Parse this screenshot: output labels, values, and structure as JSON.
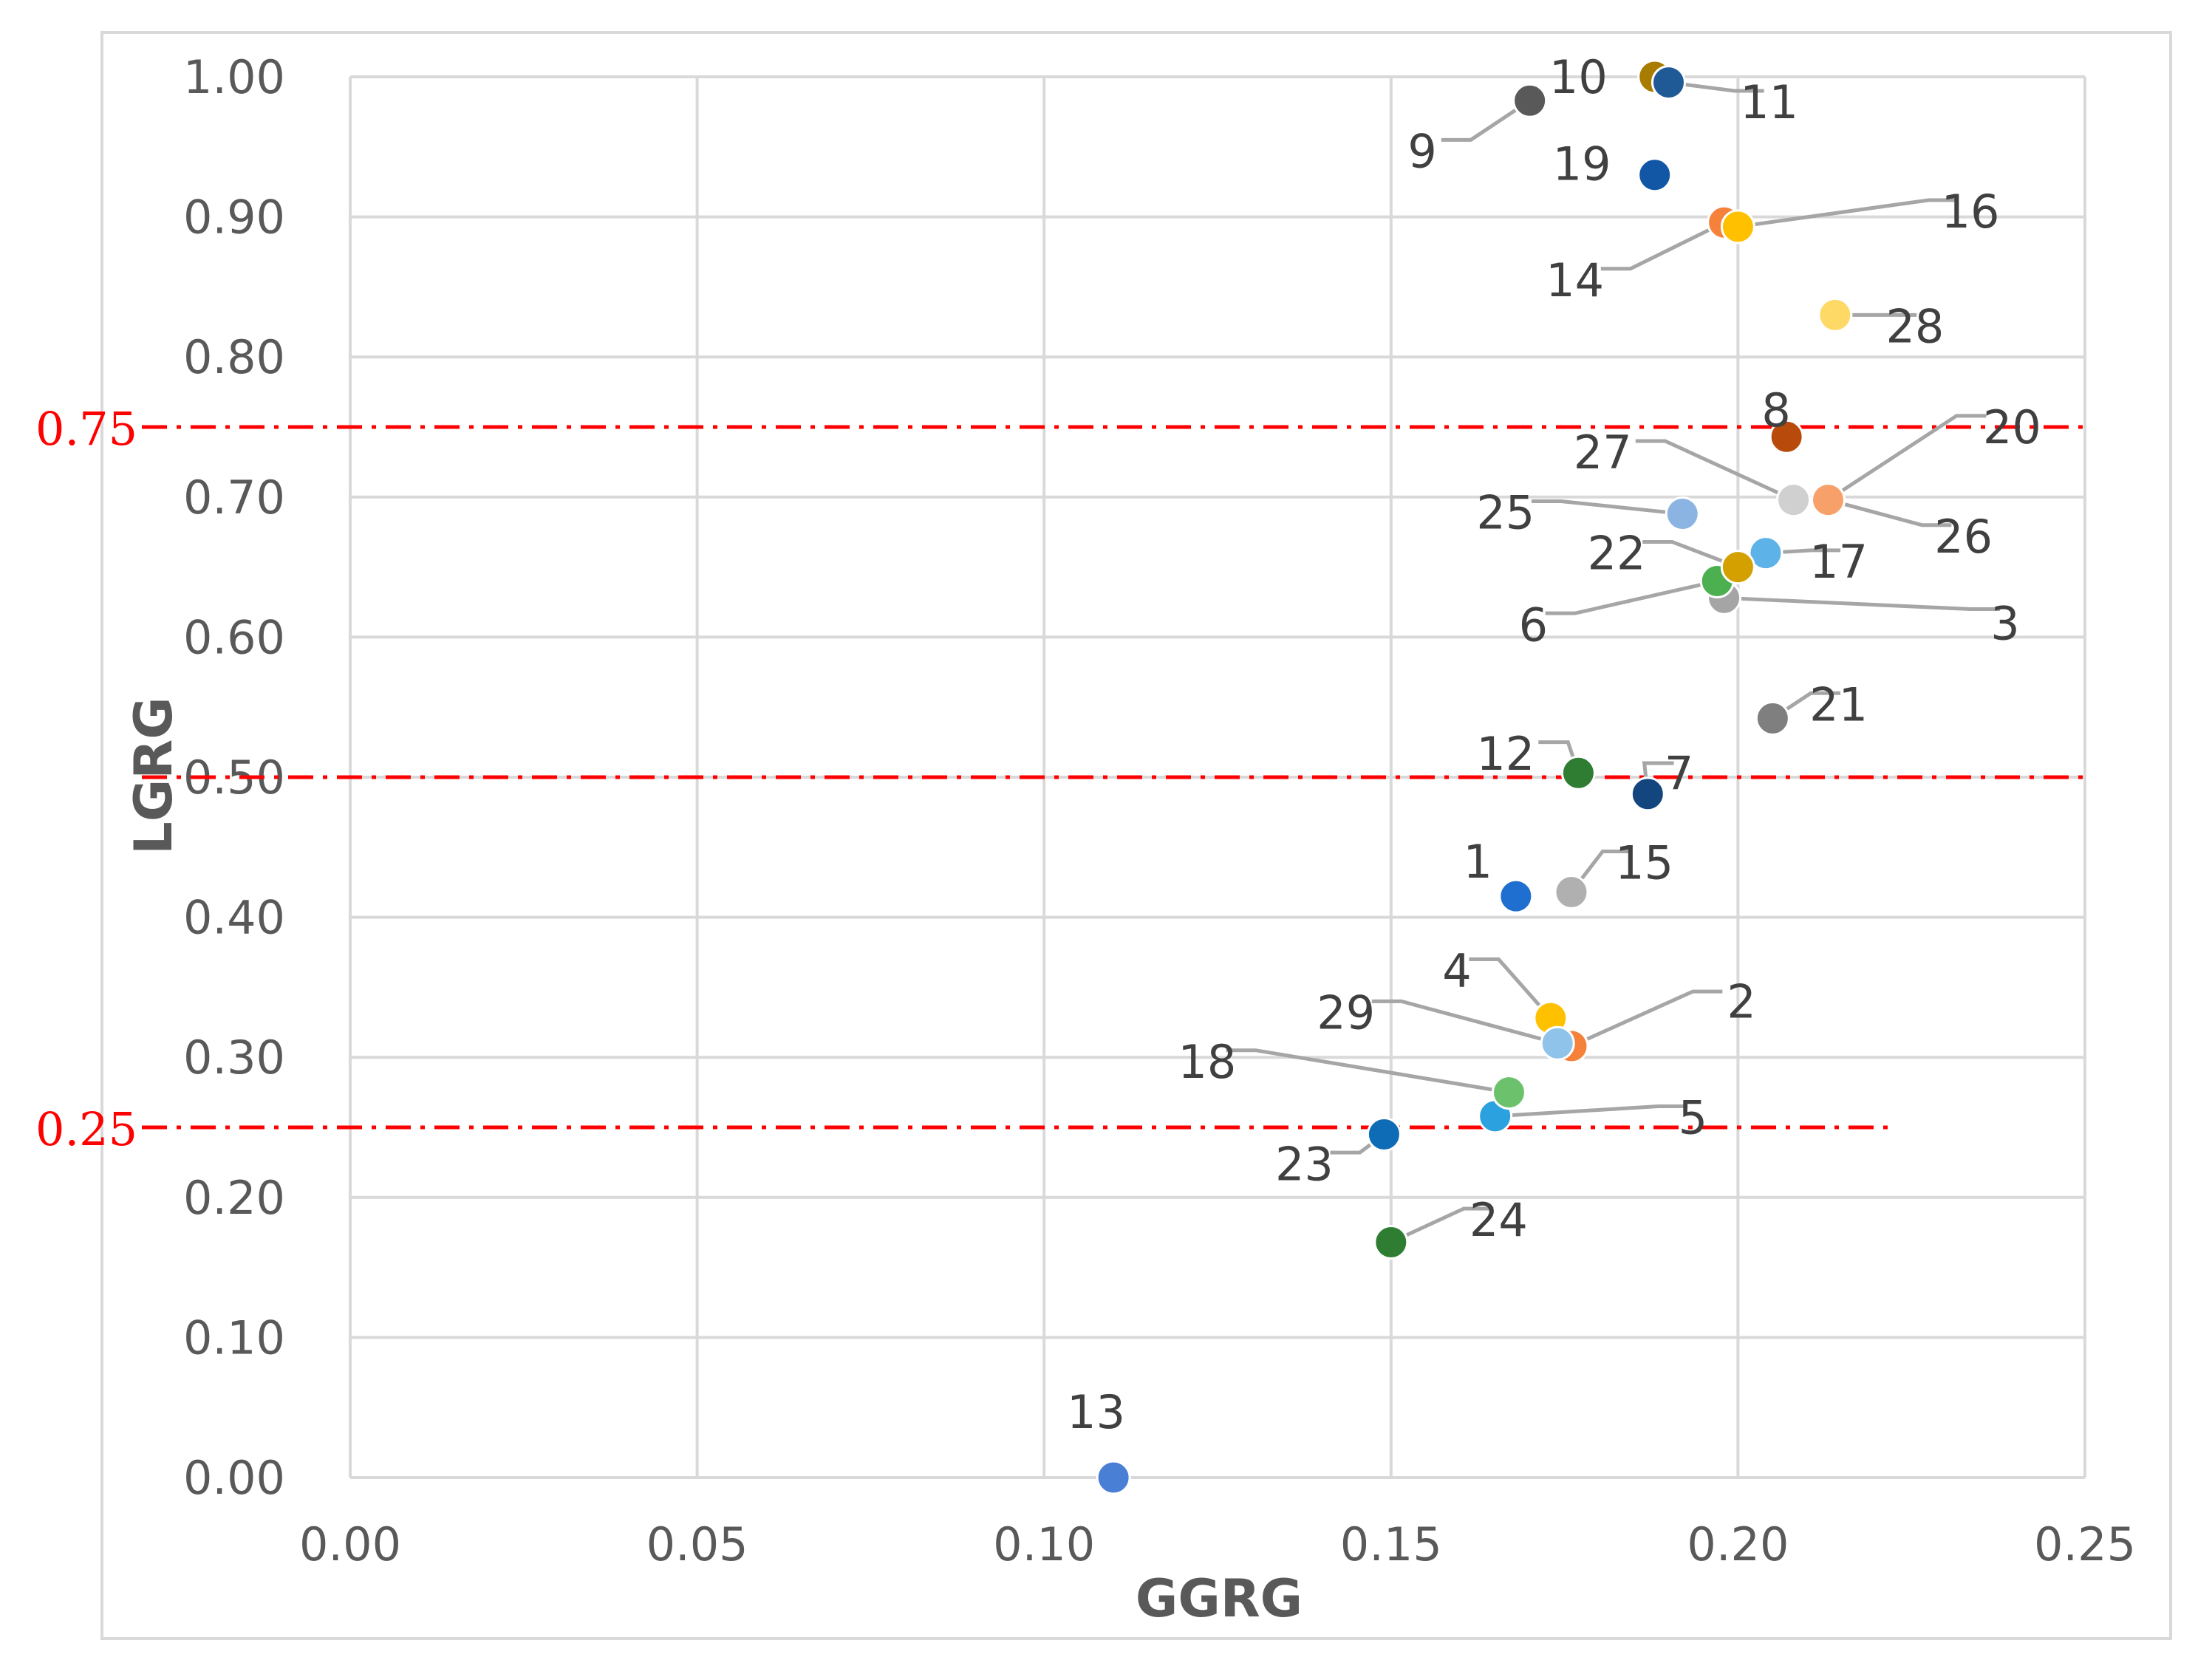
{
  "chart_data": {
    "type": "scatter",
    "title": "",
    "xlabel": "GGRG",
    "ylabel": "LGRG",
    "xlim": [
      0,
      0.25
    ],
    "ylim": [
      0,
      1.0
    ],
    "x_ticks": [
      "0.00",
      "0.05",
      "0.10",
      "0.15",
      "0.20",
      "0.25"
    ],
    "y_ticks": [
      "0.00",
      "0.10",
      "0.20",
      "0.30",
      "0.40",
      "0.50",
      "0.60",
      "0.70",
      "0.80",
      "0.90",
      "1.00"
    ],
    "grid": true,
    "thresholds": [
      {
        "label": "0.75",
        "value": 0.75,
        "x_end": 0.25,
        "color": "#ff0000"
      },
      {
        "label": "0.50",
        "value": 0.5,
        "x_end": 0.25,
        "color": "#ff0000"
      },
      {
        "label": "0.25",
        "value": 0.25,
        "x_end": 0.222,
        "color": "#ff0000"
      }
    ],
    "points": [
      {
        "label": "1",
        "x": 0.168,
        "y": 0.415,
        "color": "#1f6fd0",
        "anchor": [
          0.165,
          0.426
        ],
        "elbow": null,
        "text_at": [
          0.1625,
          0.44
        ]
      },
      {
        "label": "2",
        "x": 0.176,
        "y": 0.308,
        "color": "#f5813a",
        "anchor": [
          0.176,
          0.308
        ],
        "elbow": [
          0.1935,
          0.347
        ],
        "text_at": [
          0.2005,
          0.34
        ]
      },
      {
        "label": "3",
        "x": 0.198,
        "y": 0.628,
        "color": "#a5a5a5",
        "anchor": [
          0.198,
          0.628
        ],
        "elbow": [
          0.2335,
          0.62
        ],
        "text_at": [
          0.2385,
          0.61
        ]
      },
      {
        "label": "4",
        "x": 0.173,
        "y": 0.328,
        "color": "#ffc000",
        "anchor": [
          0.173,
          0.328
        ],
        "elbow": [
          0.1655,
          0.37
        ],
        "text_at": [
          0.1595,
          0.362
        ]
      },
      {
        "label": "5",
        "x": 0.165,
        "y": 0.258,
        "color": "#2ba1e0",
        "anchor": [
          0.165,
          0.258
        ],
        "elbow": [
          0.1885,
          0.265
        ],
        "text_at": [
          0.1935,
          0.257
        ]
      },
      {
        "label": "6",
        "x": 0.197,
        "y": 0.64,
        "color": "#4caf50",
        "anchor": [
          0.197,
          0.64
        ],
        "elbow": [
          0.1765,
          0.617
        ],
        "text_at": [
          0.1705,
          0.609
        ]
      },
      {
        "label": "7",
        "x": 0.187,
        "y": 0.488,
        "color": "#13467f",
        "anchor": [
          0.187,
          0.488
        ],
        "elbow": [
          0.1865,
          0.51
        ],
        "text_at": [
          0.1915,
          0.503
        ]
      },
      {
        "label": "8",
        "x": 0.207,
        "y": 0.743,
        "color": "#b84a0c",
        "anchor": null,
        "elbow": null,
        "text_at": [
          0.2055,
          0.762
        ]
      },
      {
        "label": "9",
        "x": 0.17,
        "y": 0.983,
        "color": "#595959",
        "anchor": [
          0.17,
          0.983
        ],
        "elbow": [
          0.1615,
          0.955
        ],
        "text_at": [
          0.1545,
          0.947
        ]
      },
      {
        "label": "10",
        "x": 0.188,
        "y": 1.0,
        "color": "#a87c00",
        "anchor": null,
        "elbow": null,
        "text_at": [
          0.177,
          1.0
        ]
      },
      {
        "label": "11",
        "x": 0.19,
        "y": 0.996,
        "color": "#1f5a97",
        "anchor": [
          0.19,
          0.996
        ],
        "elbow": [
          0.1995,
          0.99
        ],
        "text_at": [
          0.2045,
          0.982
        ]
      },
      {
        "label": "12",
        "x": 0.177,
        "y": 0.503,
        "color": "#2e7d32",
        "anchor": [
          0.177,
          0.503
        ],
        "elbow": [
          0.1755,
          0.525
        ],
        "text_at": [
          0.1665,
          0.517
        ]
      },
      {
        "label": "13",
        "x": 0.11,
        "y": 0.0,
        "color": "#4a7fd6",
        "anchor": null,
        "elbow": null,
        "text_at": [
          0.1075,
          0.047
        ]
      },
      {
        "label": "14",
        "x": 0.198,
        "y": 0.896,
        "color": "#f5813a",
        "anchor": [
          0.198,
          0.896
        ],
        "elbow": [
          0.1845,
          0.863
        ],
        "text_at": [
          0.1765,
          0.855
        ]
      },
      {
        "label": "15",
        "x": 0.176,
        "y": 0.418,
        "color": "#b0b0b0",
        "anchor": [
          0.176,
          0.418
        ],
        "elbow": [
          0.1805,
          0.447
        ],
        "text_at": [
          0.1865,
          0.439
        ]
      },
      {
        "label": "16",
        "x": 0.2,
        "y": 0.893,
        "color": "#ffc000",
        "anchor": [
          0.2,
          0.893
        ],
        "elbow": [
          0.2275,
          0.912
        ],
        "text_at": [
          0.2335,
          0.904
        ]
      },
      {
        "label": "17",
        "x": 0.204,
        "y": 0.66,
        "color": "#5db3e8",
        "anchor": [
          0.204,
          0.66
        ],
        "elbow": [
          0.2105,
          0.662
        ],
        "text_at": [
          0.2145,
          0.654
        ]
      },
      {
        "label": "18",
        "x": 0.167,
        "y": 0.275,
        "color": "#6cc26c",
        "anchor": [
          0.167,
          0.275
        ],
        "elbow": [
          0.1305,
          0.305
        ],
        "text_at": [
          0.1235,
          0.297
        ]
      },
      {
        "label": "19",
        "x": 0.188,
        "y": 0.93,
        "color": "#1256a6",
        "anchor": null,
        "elbow": null,
        "text_at": [
          0.1775,
          0.938
        ]
      },
      {
        "label": "20",
        "x": 0.213,
        "y": 0.698,
        "color": "#f5813a",
        "anchor": [
          0.213,
          0.698
        ],
        "elbow": [
          0.2315,
          0.758
        ],
        "text_at": [
          0.2395,
          0.75
        ]
      },
      {
        "label": "21",
        "x": 0.205,
        "y": 0.542,
        "color": "#7f7f7f",
        "anchor": [
          0.205,
          0.542
        ],
        "elbow": [
          0.2105,
          0.56
        ],
        "text_at": [
          0.2145,
          0.552
        ]
      },
      {
        "label": "22",
        "x": 0.2,
        "y": 0.65,
        "color": "#d4a000",
        "anchor": [
          0.2,
          0.65
        ],
        "elbow": [
          0.1905,
          0.668
        ],
        "text_at": [
          0.1825,
          0.66
        ]
      },
      {
        "label": "23",
        "x": 0.149,
        "y": 0.245,
        "color": "#0e6cb6",
        "anchor": [
          0.149,
          0.245
        ],
        "elbow": [
          0.1455,
          0.232
        ],
        "text_at": [
          0.1375,
          0.224
        ]
      },
      {
        "label": "24",
        "x": 0.15,
        "y": 0.168,
        "color": "#2e7d32",
        "anchor": [
          0.15,
          0.168
        ],
        "elbow": [
          0.1605,
          0.192
        ],
        "text_at": [
          0.1655,
          0.184
        ]
      },
      {
        "label": "25",
        "x": 0.192,
        "y": 0.688,
        "color": "#8cb4e2",
        "anchor": [
          0.192,
          0.688
        ],
        "elbow": [
          0.1745,
          0.697
        ],
        "text_at": [
          0.1665,
          0.689
        ]
      },
      {
        "label": "26",
        "x": 0.213,
        "y": 0.698,
        "color": "#f7a06a",
        "anchor": [
          0.213,
          0.698
        ],
        "elbow": [
          0.2265,
          0.68
        ],
        "text_at": [
          0.2325,
          0.672
        ]
      },
      {
        "label": "27",
        "x": 0.208,
        "y": 0.698,
        "color": "#d0d0d0",
        "anchor": [
          0.208,
          0.698
        ],
        "elbow": [
          0.1895,
          0.74
        ],
        "text_at": [
          0.1805,
          0.732
        ]
      },
      {
        "label": "28",
        "x": 0.214,
        "y": 0.83,
        "color": "#ffd966",
        "anchor": [
          0.214,
          0.83
        ],
        "elbow": [
          0.2215,
          0.83
        ],
        "text_at": [
          0.2255,
          0.822
        ]
      },
      {
        "label": "29",
        "x": 0.174,
        "y": 0.31,
        "color": "#8fc3ea",
        "anchor": [
          0.174,
          0.31
        ],
        "elbow": [
          0.1515,
          0.34
        ],
        "text_at": [
          0.1435,
          0.332
        ]
      }
    ]
  }
}
